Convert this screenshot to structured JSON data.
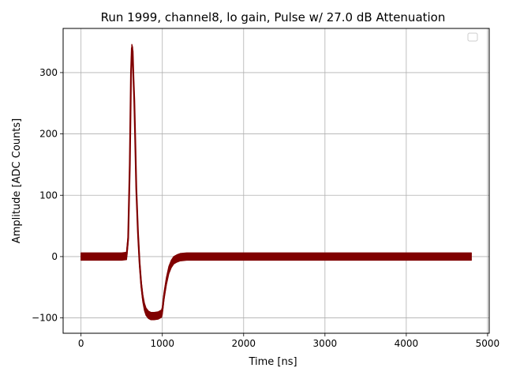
{
  "chart_data": {
    "type": "line",
    "title": "Run 1999, channel8, lo gain, Pulse w/ 27.0 dB Attenuation",
    "xlabel": "Time [ns]",
    "ylabel": "Amplitude [ADC Counts]",
    "xlim": [
      -220,
      5020
    ],
    "ylim": [
      -125,
      372
    ],
    "xticks": [
      0,
      1000,
      2000,
      3000,
      4000,
      5000
    ],
    "xtick_labels": [
      "0",
      "1000",
      "2000",
      "3000",
      "4000",
      "5000"
    ],
    "yticks": [
      -100,
      0,
      100,
      200,
      300
    ],
    "ytick_labels": [
      "−100",
      "0",
      "100",
      "200",
      "300"
    ],
    "grid": true,
    "legend": {
      "placement": "top-right",
      "entries": []
    },
    "series": [
      {
        "color": "#800000",
        "noise_band": 6,
        "x": [
          0,
          100,
          200,
          300,
          400,
          500,
          560,
          580,
          600,
          615,
          625,
          635,
          645,
          655,
          665,
          680,
          700,
          720,
          740,
          760,
          780,
          800,
          830,
          860,
          900,
          950,
          990,
          1000,
          1020,
          1050,
          1080,
          1110,
          1140,
          1180,
          1220,
          1300,
          1400,
          1600,
          2000,
          2500,
          3000,
          3500,
          4000,
          4500,
          4800
        ],
        "y": [
          0,
          0,
          0,
          0,
          0,
          0,
          1,
          30,
          150,
          300,
          340,
          335,
          290,
          255,
          200,
          110,
          40,
          -10,
          -45,
          -68,
          -82,
          -90,
          -95,
          -97,
          -97,
          -96,
          -93,
          -88,
          -65,
          -40,
          -22,
          -12,
          -6,
          -3,
          -1,
          0,
          0,
          0,
          0,
          0,
          0,
          0,
          0,
          0,
          0
        ]
      }
    ]
  }
}
